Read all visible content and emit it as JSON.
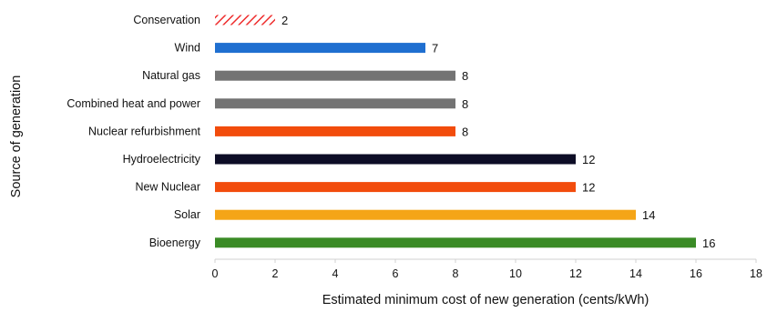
{
  "chart_data": {
    "type": "bar",
    "orientation": "horizontal",
    "xlabel": "Estimated minimum cost of new generation (cents/kWh)",
    "ylabel": "Source of generation",
    "xlim": [
      0,
      18
    ],
    "xticks": [
      "0",
      "2",
      "4",
      "6",
      "8",
      "10",
      "12",
      "14",
      "16",
      "18"
    ],
    "grid": false,
    "categories": [
      "Conservation",
      "Wind",
      "Natural gas",
      "Combined heat and power",
      "Nuclear refurbishment",
      "Hydroelectricity",
      "New Nuclear",
      "Solar",
      "Bioenergy"
    ],
    "values": [
      2,
      7,
      8,
      8,
      8,
      12,
      12,
      14,
      16
    ],
    "value_labels": [
      "2",
      "7",
      "8",
      "8",
      "8",
      "12",
      "12",
      "14",
      "16"
    ],
    "colors": [
      "#ee2b2b",
      "#1f6fd0",
      "#737373",
      "#737373",
      "#f24c0c",
      "#0d0d26",
      "#f24c0c",
      "#f5a517",
      "#3a8b26"
    ],
    "patterns": [
      "hatched",
      "solid",
      "solid",
      "solid",
      "solid",
      "solid",
      "solid",
      "solid",
      "solid"
    ]
  }
}
